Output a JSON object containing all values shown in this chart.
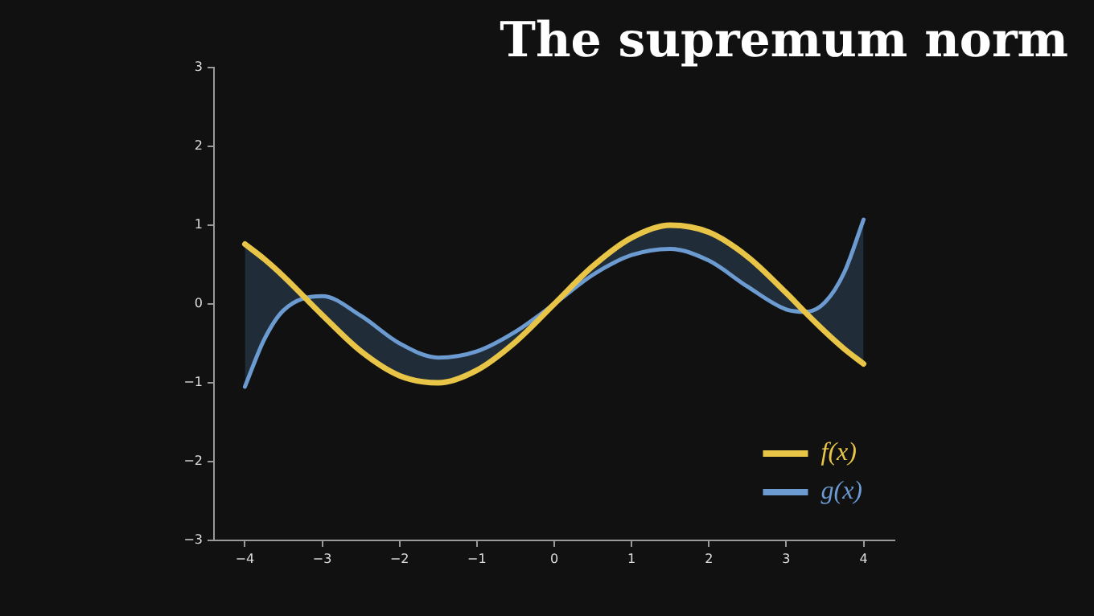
{
  "chart_data": {
    "type": "line",
    "title": "The supremum norm",
    "x": [
      -4,
      -3.75,
      -3.5,
      -3,
      -2.5,
      -2,
      -1.5,
      -1,
      -0.5,
      0,
      0.5,
      1,
      1.5,
      2,
      2.5,
      3,
      3.25,
      3.5,
      3.75,
      4
    ],
    "series": [
      {
        "name": "f(x)",
        "color": "#e8c547",
        "values": [
          0.76,
          0.57,
          0.35,
          -0.14,
          -0.6,
          -0.91,
          -1.0,
          -0.84,
          -0.48,
          0,
          0.48,
          0.84,
          1.0,
          0.91,
          0.6,
          0.14,
          -0.11,
          -0.35,
          -0.57,
          -0.76
        ],
        "upper": [
          0.76,
          0.57,
          0.35,
          -0.14,
          -0.6,
          -0.91,
          -1.0,
          -0.84,
          -0.48,
          0,
          0.48,
          0.84,
          1.0,
          0.91,
          0.6,
          0.14,
          -0.11,
          -0.35,
          -0.57,
          -0.76
        ],
        "lower": [
          -1.05,
          -0.45,
          -0.08,
          0.1,
          -0.15,
          -0.5,
          -0.68,
          -0.6,
          -0.35,
          0,
          0.37,
          0.62,
          0.7,
          0.55,
          0.22,
          -0.07,
          -0.1,
          0.02,
          0.4,
          1.07
        ]
      },
      {
        "name": "g(x)",
        "color": "#6b9bd1",
        "values": [
          -1.05,
          -0.45,
          -0.08,
          0.1,
          -0.15,
          -0.5,
          -0.68,
          -0.6,
          -0.35,
          0,
          0.37,
          0.62,
          0.7,
          0.55,
          0.22,
          -0.07,
          -0.1,
          0.02,
          0.4,
          1.07
        ]
      }
    ],
    "xlim": [
      -4.4,
      4.4
    ],
    "ylim": [
      -3,
      3
    ],
    "xticks": [
      {
        "value": -4,
        "label": "−4"
      },
      {
        "value": -3,
        "label": "−3"
      },
      {
        "value": -2,
        "label": "−2"
      },
      {
        "value": -1,
        "label": "−1"
      },
      0,
      1,
      2,
      3,
      4
    ],
    "yticks": [
      {
        "value": -3,
        "label": "−3"
      },
      {
        "value": -2,
        "label": "−2"
      },
      {
        "value": -1,
        "label": "−1"
      },
      0,
      1,
      2,
      3
    ],
    "grid": false,
    "legend": "bottom right",
    "marker": "none",
    "line_style": "solid"
  }
}
